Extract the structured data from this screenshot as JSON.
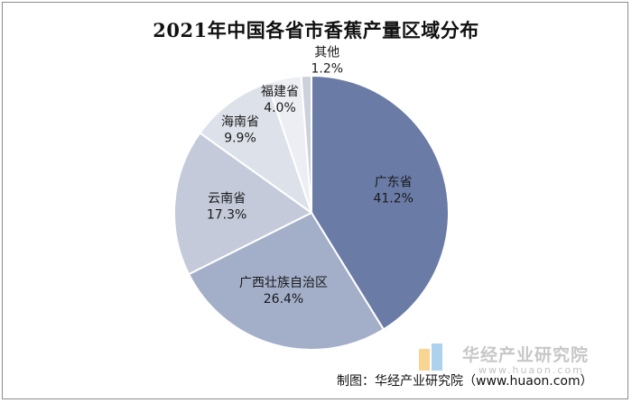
{
  "chart_data": {
    "type": "pie",
    "title": "2021年中国各省市香蕉产量区域分布",
    "slices": [
      {
        "name": "广东省",
        "value": 41.2,
        "label": "41.2%",
        "color": "#6a7ba6"
      },
      {
        "name": "广西壮族自治区",
        "value": 26.4,
        "label": "26.4%",
        "color": "#a3aec9"
      },
      {
        "name": "云南省",
        "value": 17.3,
        "label": "17.3%",
        "color": "#c4cad9"
      },
      {
        "name": "海南省",
        "value": 9.9,
        "label": "9.9%",
        "color": "#dde1ea"
      },
      {
        "name": "福建省",
        "value": 4.0,
        "label": "4.0%",
        "color": "#eceef3"
      },
      {
        "name": "其他",
        "value": 1.2,
        "label": "1.2%",
        "color": "#cdd1dc"
      }
    ],
    "legend": "none",
    "labels_on_slices": true
  },
  "source": "制图：华经产业研究院（www.huaon.com）",
  "watermark": {
    "text": "华经产业研究院",
    "url": "www.huaon.com",
    "logo_colors": [
      "#f5b43c",
      "#6aaee0"
    ]
  }
}
